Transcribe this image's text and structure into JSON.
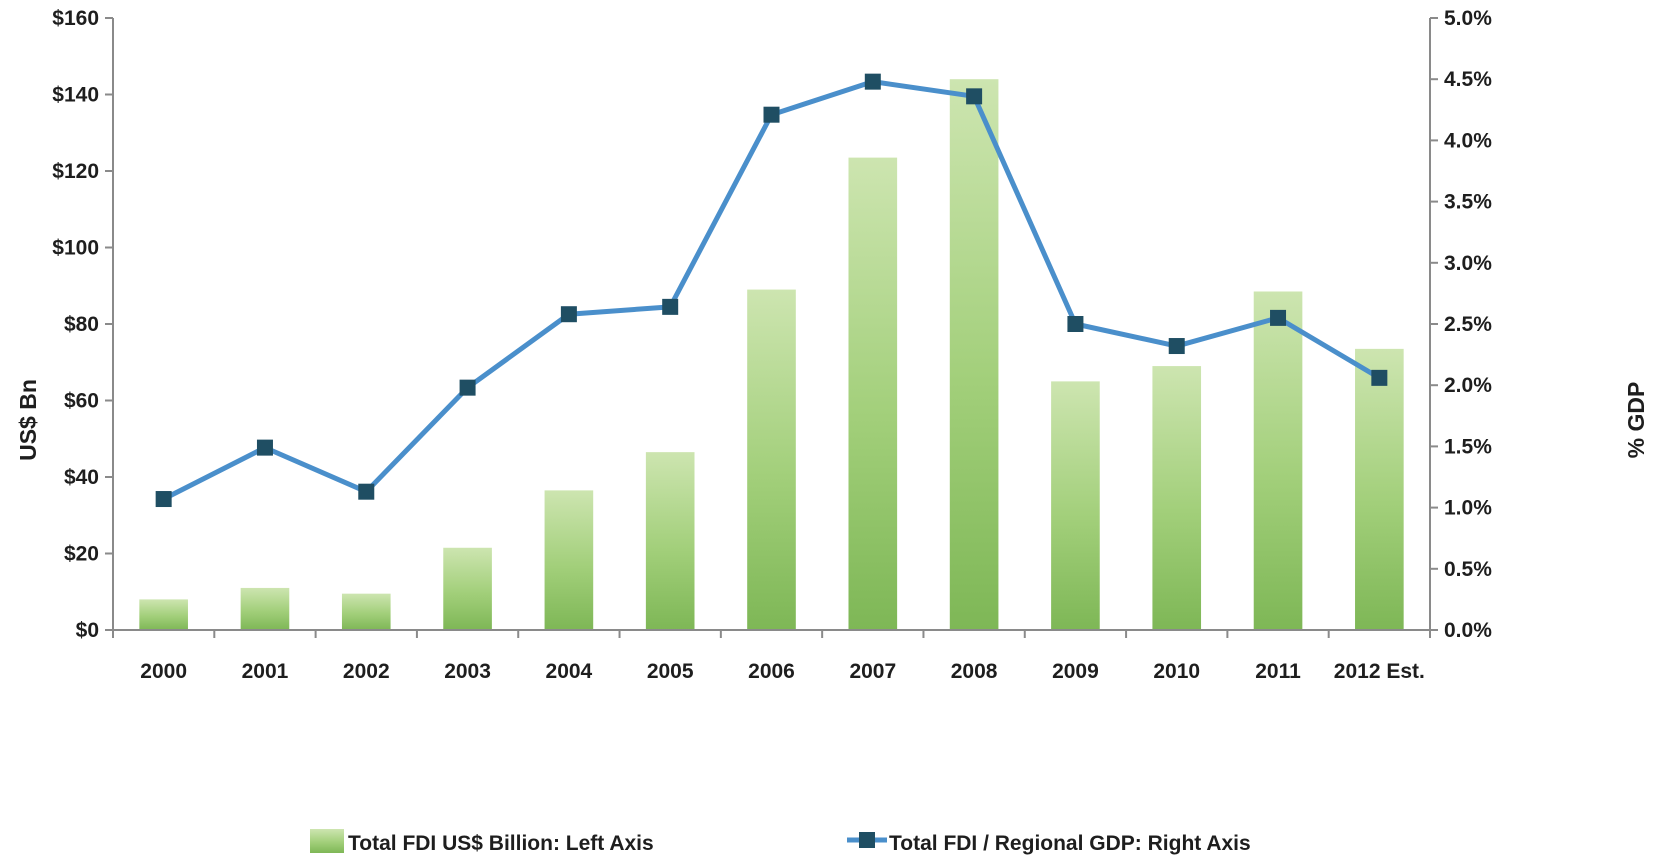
{
  "chart_data": {
    "type": "bar",
    "categories": [
      "2000",
      "2001",
      "2002",
      "2003",
      "2004",
      "2005",
      "2006",
      "2007",
      "2008",
      "2009",
      "2010",
      "2011",
      "2012 Est."
    ],
    "series": [
      {
        "name": "Total FDI US$ Billion: Left Axis",
        "type": "bar",
        "axis": "left",
        "values": [
          8,
          11,
          9.5,
          21.5,
          36.5,
          46.5,
          89,
          123.5,
          144,
          65,
          69,
          88.5,
          73.5
        ],
        "color": "#8cc063"
      },
      {
        "name": "Total FDI / Regional GDP: Right Axis",
        "type": "line",
        "axis": "right",
        "values": [
          1.07,
          1.49,
          1.13,
          1.98,
          2.58,
          2.64,
          4.21,
          4.48,
          4.36,
          2.5,
          2.32,
          2.55,
          2.06
        ],
        "color": "#4a8fcb",
        "marker_color": "#1f4e63"
      }
    ],
    "ylabel": "US$ Bn",
    "ylabel_right": "% GDP",
    "ylim": [
      0,
      160
    ],
    "ylim_right": [
      0,
      5
    ],
    "yticks": [
      "$0",
      "$20",
      "$40",
      "$60",
      "$80",
      "$100",
      "$120",
      "$140",
      "$160"
    ],
    "yticks_right": [
      "0.0%",
      "0.5%",
      "1.0%",
      "1.5%",
      "2.0%",
      "2.5%",
      "3.0%",
      "3.5%",
      "4.0%",
      "4.5%",
      "5.0%"
    ],
    "grid": false,
    "legend_position": "bottom"
  }
}
